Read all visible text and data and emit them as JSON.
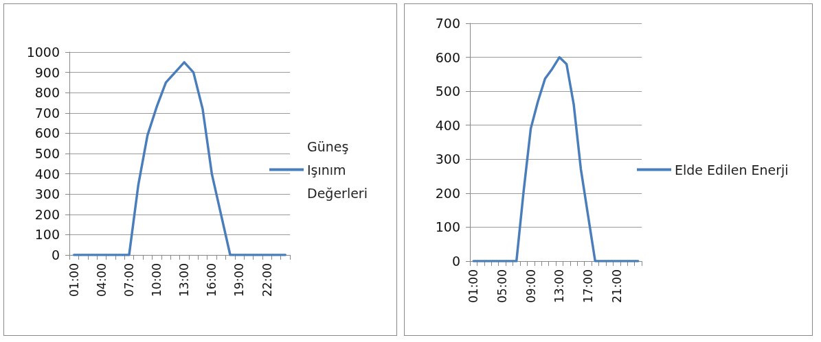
{
  "chart_data": [
    {
      "type": "line",
      "categories": [
        "01:00",
        null,
        null,
        "04:00",
        null,
        null,
        "07:00",
        null,
        null,
        "10:00",
        null,
        null,
        "13:00",
        null,
        null,
        "16:00",
        null,
        null,
        "19:00",
        null,
        null,
        "22:00",
        null,
        null
      ],
      "series": [
        {
          "name": "Güneş Işınım Değerleri",
          "color": "#4a7ebb",
          "values": [
            0,
            0,
            0,
            0,
            0,
            0,
            0,
            345,
            590,
            730,
            850,
            900,
            950,
            900,
            720,
            400,
            200,
            0,
            0,
            0,
            0,
            0,
            0,
            0
          ]
        }
      ],
      "ylim": [
        0,
        1000
      ],
      "yticks": [
        0,
        100,
        200,
        300,
        400,
        500,
        600,
        700,
        800,
        900,
        1000
      ],
      "grid": "y",
      "legend": "right",
      "marker": "none",
      "line_style": "solid"
    },
    {
      "type": "line",
      "categories": [
        "01:00",
        null,
        null,
        null,
        "05:00",
        null,
        null,
        null,
        "09:00",
        null,
        null,
        null,
        "13:00",
        null,
        null,
        null,
        "17:00",
        null,
        null,
        null,
        "21:00",
        null,
        null,
        null
      ],
      "series": [
        {
          "name": "Elde Edilen Enerji",
          "color": "#4a7ebb",
          "values": [
            0,
            0,
            0,
            0,
            0,
            0,
            0,
            205,
            390,
            470,
            537,
            566,
            600,
            580,
            462,
            271,
            135,
            0,
            0,
            0,
            0,
            0,
            0,
            0
          ]
        }
      ],
      "ylim": [
        0,
        700
      ],
      "yticks": [
        0,
        100,
        200,
        300,
        400,
        500,
        600,
        700
      ],
      "grid": "y",
      "legend": "right",
      "marker": "none",
      "line_style": "solid"
    }
  ]
}
